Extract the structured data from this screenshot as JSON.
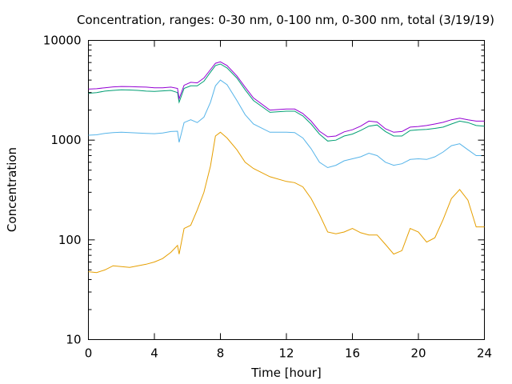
{
  "chart_data": {
    "type": "line",
    "title": "Concentration, ranges: 0-30 nm, 0-100 nm, 0-300 nm, total (3/19/19)",
    "xlabel": "Time [hour]",
    "ylabel": "Concentration",
    "xlim": [
      0,
      24
    ],
    "ylim": [
      10,
      10000
    ],
    "yscale": "log",
    "grid": false,
    "legend": "none",
    "x_ticks": [
      0,
      4,
      8,
      12,
      16,
      20,
      24
    ],
    "x_tick_labels": [
      "0",
      "4",
      "8",
      "12",
      "16",
      "20",
      "24"
    ],
    "y_ticks": [
      10,
      100,
      1000,
      10000
    ],
    "y_tick_labels": [
      "10",
      "100",
      "1000",
      "10000"
    ],
    "series": [
      {
        "color": "#e69f00",
        "x": [
          0,
          0.5,
          1,
          1.5,
          2,
          2.5,
          3,
          3.5,
          4,
          4.5,
          5,
          5.4,
          5.5,
          5.8,
          6.2,
          6.6,
          7.0,
          7.4,
          7.7,
          8.0,
          8.4,
          9.0,
          9.5,
          10,
          11,
          12,
          12.5,
          13,
          13.5,
          14,
          14.5,
          15,
          15.5,
          16,
          16.5,
          17,
          17.5,
          18,
          18.5,
          19,
          19.5,
          20,
          20.5,
          21,
          21.5,
          22,
          22.5,
          23,
          23.5,
          24
        ],
        "values": [
          48,
          47,
          50,
          55,
          54,
          53,
          55,
          57,
          60,
          65,
          75,
          88,
          72,
          130,
          140,
          200,
          300,
          550,
          1100,
          1200,
          1050,
          800,
          600,
          520,
          430,
          385,
          375,
          340,
          260,
          180,
          120,
          115,
          120,
          130,
          118,
          112,
          112,
          90,
          72,
          78,
          130,
          120,
          95,
          105,
          160,
          260,
          320,
          250,
          135,
          135
        ]
      },
      {
        "color": "#56b4e9",
        "x": [
          0,
          0.5,
          1,
          1.5,
          2,
          2.5,
          3,
          3.5,
          4,
          4.5,
          5,
          5.4,
          5.5,
          5.8,
          6.2,
          6.6,
          7.0,
          7.4,
          7.7,
          8.0,
          8.4,
          9.0,
          9.5,
          10,
          11,
          12,
          12.5,
          13,
          13.5,
          14,
          14.5,
          15,
          15.5,
          16,
          16.5,
          17,
          17.5,
          18,
          18.5,
          19,
          19.5,
          20,
          20.5,
          21,
          21.5,
          22,
          22.5,
          23,
          23.5,
          24
        ],
        "values": [
          1120,
          1130,
          1170,
          1190,
          1200,
          1190,
          1180,
          1170,
          1160,
          1180,
          1220,
          1230,
          950,
          1500,
          1600,
          1500,
          1700,
          2400,
          3500,
          4000,
          3600,
          2500,
          1800,
          1450,
          1200,
          1200,
          1190,
          1050,
          820,
          600,
          530,
          560,
          620,
          650,
          680,
          740,
          700,
          600,
          560,
          580,
          640,
          650,
          640,
          680,
          760,
          880,
          920,
          800,
          700,
          700
        ]
      },
      {
        "color": "#009e73",
        "x": [
          0,
          0.5,
          1,
          1.5,
          2,
          2.5,
          3,
          3.5,
          4,
          4.5,
          5,
          5.4,
          5.5,
          5.8,
          6.2,
          6.6,
          7.0,
          7.4,
          7.7,
          8.0,
          8.4,
          9.0,
          9.5,
          10,
          11,
          12,
          12.5,
          13,
          13.5,
          14,
          14.5,
          15,
          15.5,
          16,
          16.5,
          17,
          17.5,
          18,
          18.5,
          19,
          19.5,
          20,
          20.5,
          21,
          21.5,
          22,
          22.5,
          23,
          23.5,
          24
        ],
        "values": [
          2950,
          3000,
          3100,
          3150,
          3200,
          3180,
          3150,
          3100,
          3080,
          3120,
          3150,
          3000,
          2400,
          3300,
          3500,
          3500,
          3900,
          4800,
          5600,
          5800,
          5300,
          4200,
          3200,
          2500,
          1900,
          1950,
          1950,
          1750,
          1450,
          1150,
          980,
          1000,
          1100,
          1150,
          1250,
          1380,
          1420,
          1220,
          1100,
          1100,
          1250,
          1270,
          1280,
          1310,
          1350,
          1450,
          1550,
          1500,
          1400,
          1380
        ]
      },
      {
        "color": "#9400d3",
        "x": [
          0,
          0.5,
          1,
          1.5,
          2,
          2.5,
          3,
          3.5,
          4,
          4.5,
          5,
          5.4,
          5.5,
          5.8,
          6.2,
          6.6,
          7.0,
          7.4,
          7.7,
          8.0,
          8.4,
          9.0,
          9.5,
          10,
          11,
          12,
          12.5,
          13,
          13.5,
          14,
          14.5,
          15,
          15.5,
          16,
          16.5,
          17,
          17.5,
          18,
          18.5,
          19,
          19.5,
          20,
          20.5,
          21,
          21.5,
          22,
          22.5,
          23,
          23.5,
          24
        ],
        "values": [
          3250,
          3280,
          3350,
          3420,
          3450,
          3440,
          3420,
          3400,
          3350,
          3350,
          3400,
          3300,
          2600,
          3550,
          3800,
          3750,
          4200,
          5100,
          5900,
          6100,
          5600,
          4400,
          3400,
          2650,
          2000,
          2050,
          2050,
          1850,
          1550,
          1230,
          1080,
          1100,
          1210,
          1270,
          1380,
          1550,
          1520,
          1300,
          1200,
          1220,
          1350,
          1370,
          1400,
          1450,
          1510,
          1600,
          1660,
          1600,
          1550,
          1550
        ]
      }
    ]
  }
}
